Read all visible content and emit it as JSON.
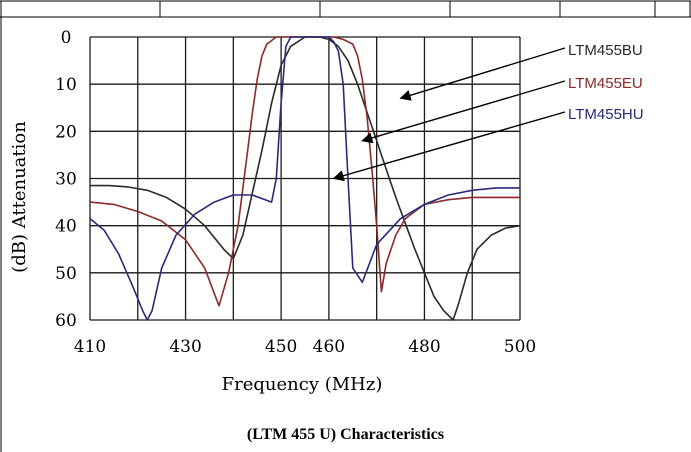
{
  "caption": "(LTM 455 U) Characteristics",
  "colors": {
    "grid": "#1a1a1a",
    "bu": "#2a2a2a",
    "eu": "#8b2a2a",
    "hu": "#2a2a7a",
    "arrow": "#000000"
  },
  "chart_data": {
    "type": "line",
    "title": "",
    "xlabel": "Frequency (MHz)",
    "ylabel": "(dB) Attenuation",
    "xlim": [
      410,
      500
    ],
    "ylim": [
      0,
      60
    ],
    "y_inverted": true,
    "grid": true,
    "x_ticks": [
      410,
      430,
      450,
      460,
      480,
      500
    ],
    "y_ticks": [
      0,
      10,
      20,
      30,
      40,
      50,
      60
    ],
    "series": [
      {
        "name": "LTM455BU",
        "color": "#2a2a2a",
        "x": [
          410,
          414,
          418,
          422,
          426,
          430,
          434,
          438,
          440,
          442,
          444,
          446,
          448,
          450,
          452,
          455,
          458,
          460,
          462,
          464,
          466,
          468,
          470,
          472,
          474,
          476,
          478,
          480,
          482,
          484,
          486,
          487,
          489,
          491,
          494,
          497,
          500
        ],
        "y": [
          31.5,
          31.5,
          31.8,
          32.5,
          34,
          36.5,
          40,
          45,
          47,
          42,
          33,
          24,
          14,
          6,
          2,
          0,
          0,
          0.5,
          2,
          5,
          10,
          16,
          22,
          28,
          34,
          39.5,
          45,
          50,
          55,
          58,
          60,
          57,
          50,
          45,
          42,
          40.5,
          40
        ]
      },
      {
        "name": "LTM455EU",
        "color": "#8b2a2a",
        "x": [
          410,
          415,
          420,
          425,
          430,
          434,
          437,
          439,
          441,
          442,
          443,
          444,
          445,
          446,
          447,
          449,
          451,
          453,
          455,
          457,
          459,
          461,
          463,
          465,
          466,
          467,
          468,
          469,
          470,
          471,
          472,
          474,
          476,
          480,
          485,
          490,
          495,
          500
        ],
        "y": [
          35,
          35.5,
          37,
          39,
          43,
          49,
          57,
          50,
          40,
          32,
          24,
          16,
          9,
          4,
          1.5,
          0,
          0,
          0,
          0,
          0,
          0,
          0,
          0.5,
          1.5,
          4,
          9,
          17,
          28,
          40,
          54,
          48,
          42,
          38.5,
          35.5,
          34.5,
          34,
          34,
          34
        ]
      },
      {
        "name": "LTM455HU",
        "color": "#2a2a7a",
        "x": [
          410,
          413,
          416,
          419,
          421,
          422,
          423,
          425,
          428,
          432,
          436,
          440,
          444,
          448,
          449,
          450,
          451,
          452,
          453,
          454,
          455,
          456,
          457,
          458,
          459,
          460,
          461,
          462,
          463,
          464,
          465,
          467,
          470,
          475,
          480,
          485,
          490,
          495,
          500
        ],
        "y": [
          38.5,
          41,
          46,
          53,
          58,
          60,
          58,
          49,
          42,
          37.5,
          35,
          33.5,
          33.5,
          35,
          30,
          14,
          2,
          0,
          0,
          0,
          0,
          0,
          0,
          0,
          0,
          0,
          1,
          3,
          10,
          30,
          49,
          52,
          44,
          38.5,
          35.5,
          33.5,
          32.5,
          32,
          32
        ]
      }
    ],
    "legend_position": "right",
    "annotations": [
      {
        "label": "LTM455BU",
        "points_to_x": 475,
        "points_to_y": 13
      },
      {
        "label": "LTM455EU",
        "points_to_x": 467,
        "points_to_y": 22
      },
      {
        "label": "LTM455HU",
        "points_to_x": 461,
        "points_to_y": 30
      }
    ]
  }
}
